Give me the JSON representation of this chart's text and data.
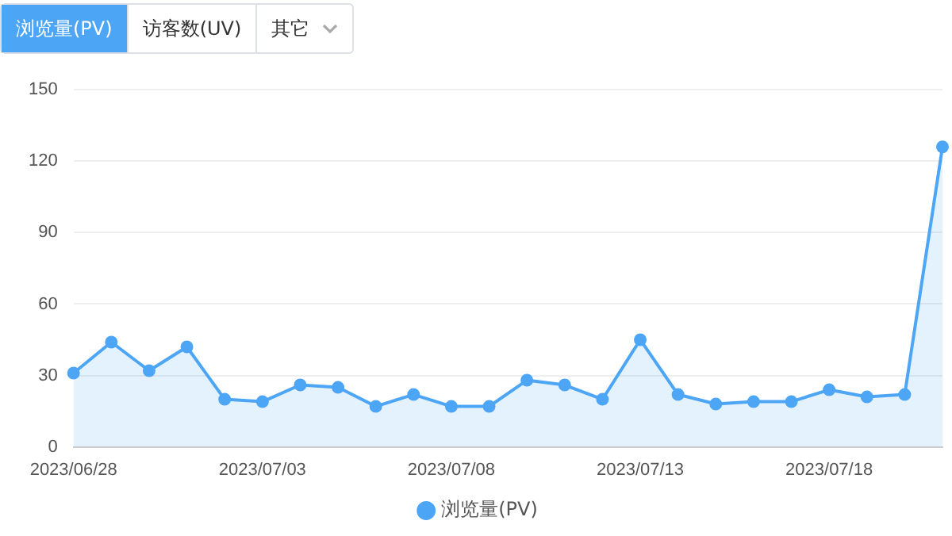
{
  "chart_data": {
    "type": "area",
    "categories": [
      "2023/06/28",
      null,
      null,
      null,
      null,
      "2023/07/03",
      null,
      null,
      null,
      null,
      "2023/07/08",
      null,
      null,
      null,
      null,
      "2023/07/13",
      null,
      null,
      null,
      null,
      "2023/07/18",
      null,
      null,
      null
    ],
    "series": [
      {
        "name": "浏览量(PV)",
        "color": "#4da6f5",
        "values": [
          31,
          44,
          32,
          42,
          20,
          19,
          26,
          25,
          17,
          22,
          17,
          17,
          28,
          26,
          20,
          45,
          22,
          18,
          19,
          19,
          24,
          21,
          22,
          126
        ]
      }
    ],
    "ylim": [
      0,
      150
    ],
    "yticks": [
      0,
      30,
      60,
      90,
      120,
      150
    ],
    "grid": "y",
    "legend": "bottom",
    "marker": "circle",
    "annotations": [
      "浏览量(PV)",
      "访客数(UV)",
      "其它"
    ]
  }
}
